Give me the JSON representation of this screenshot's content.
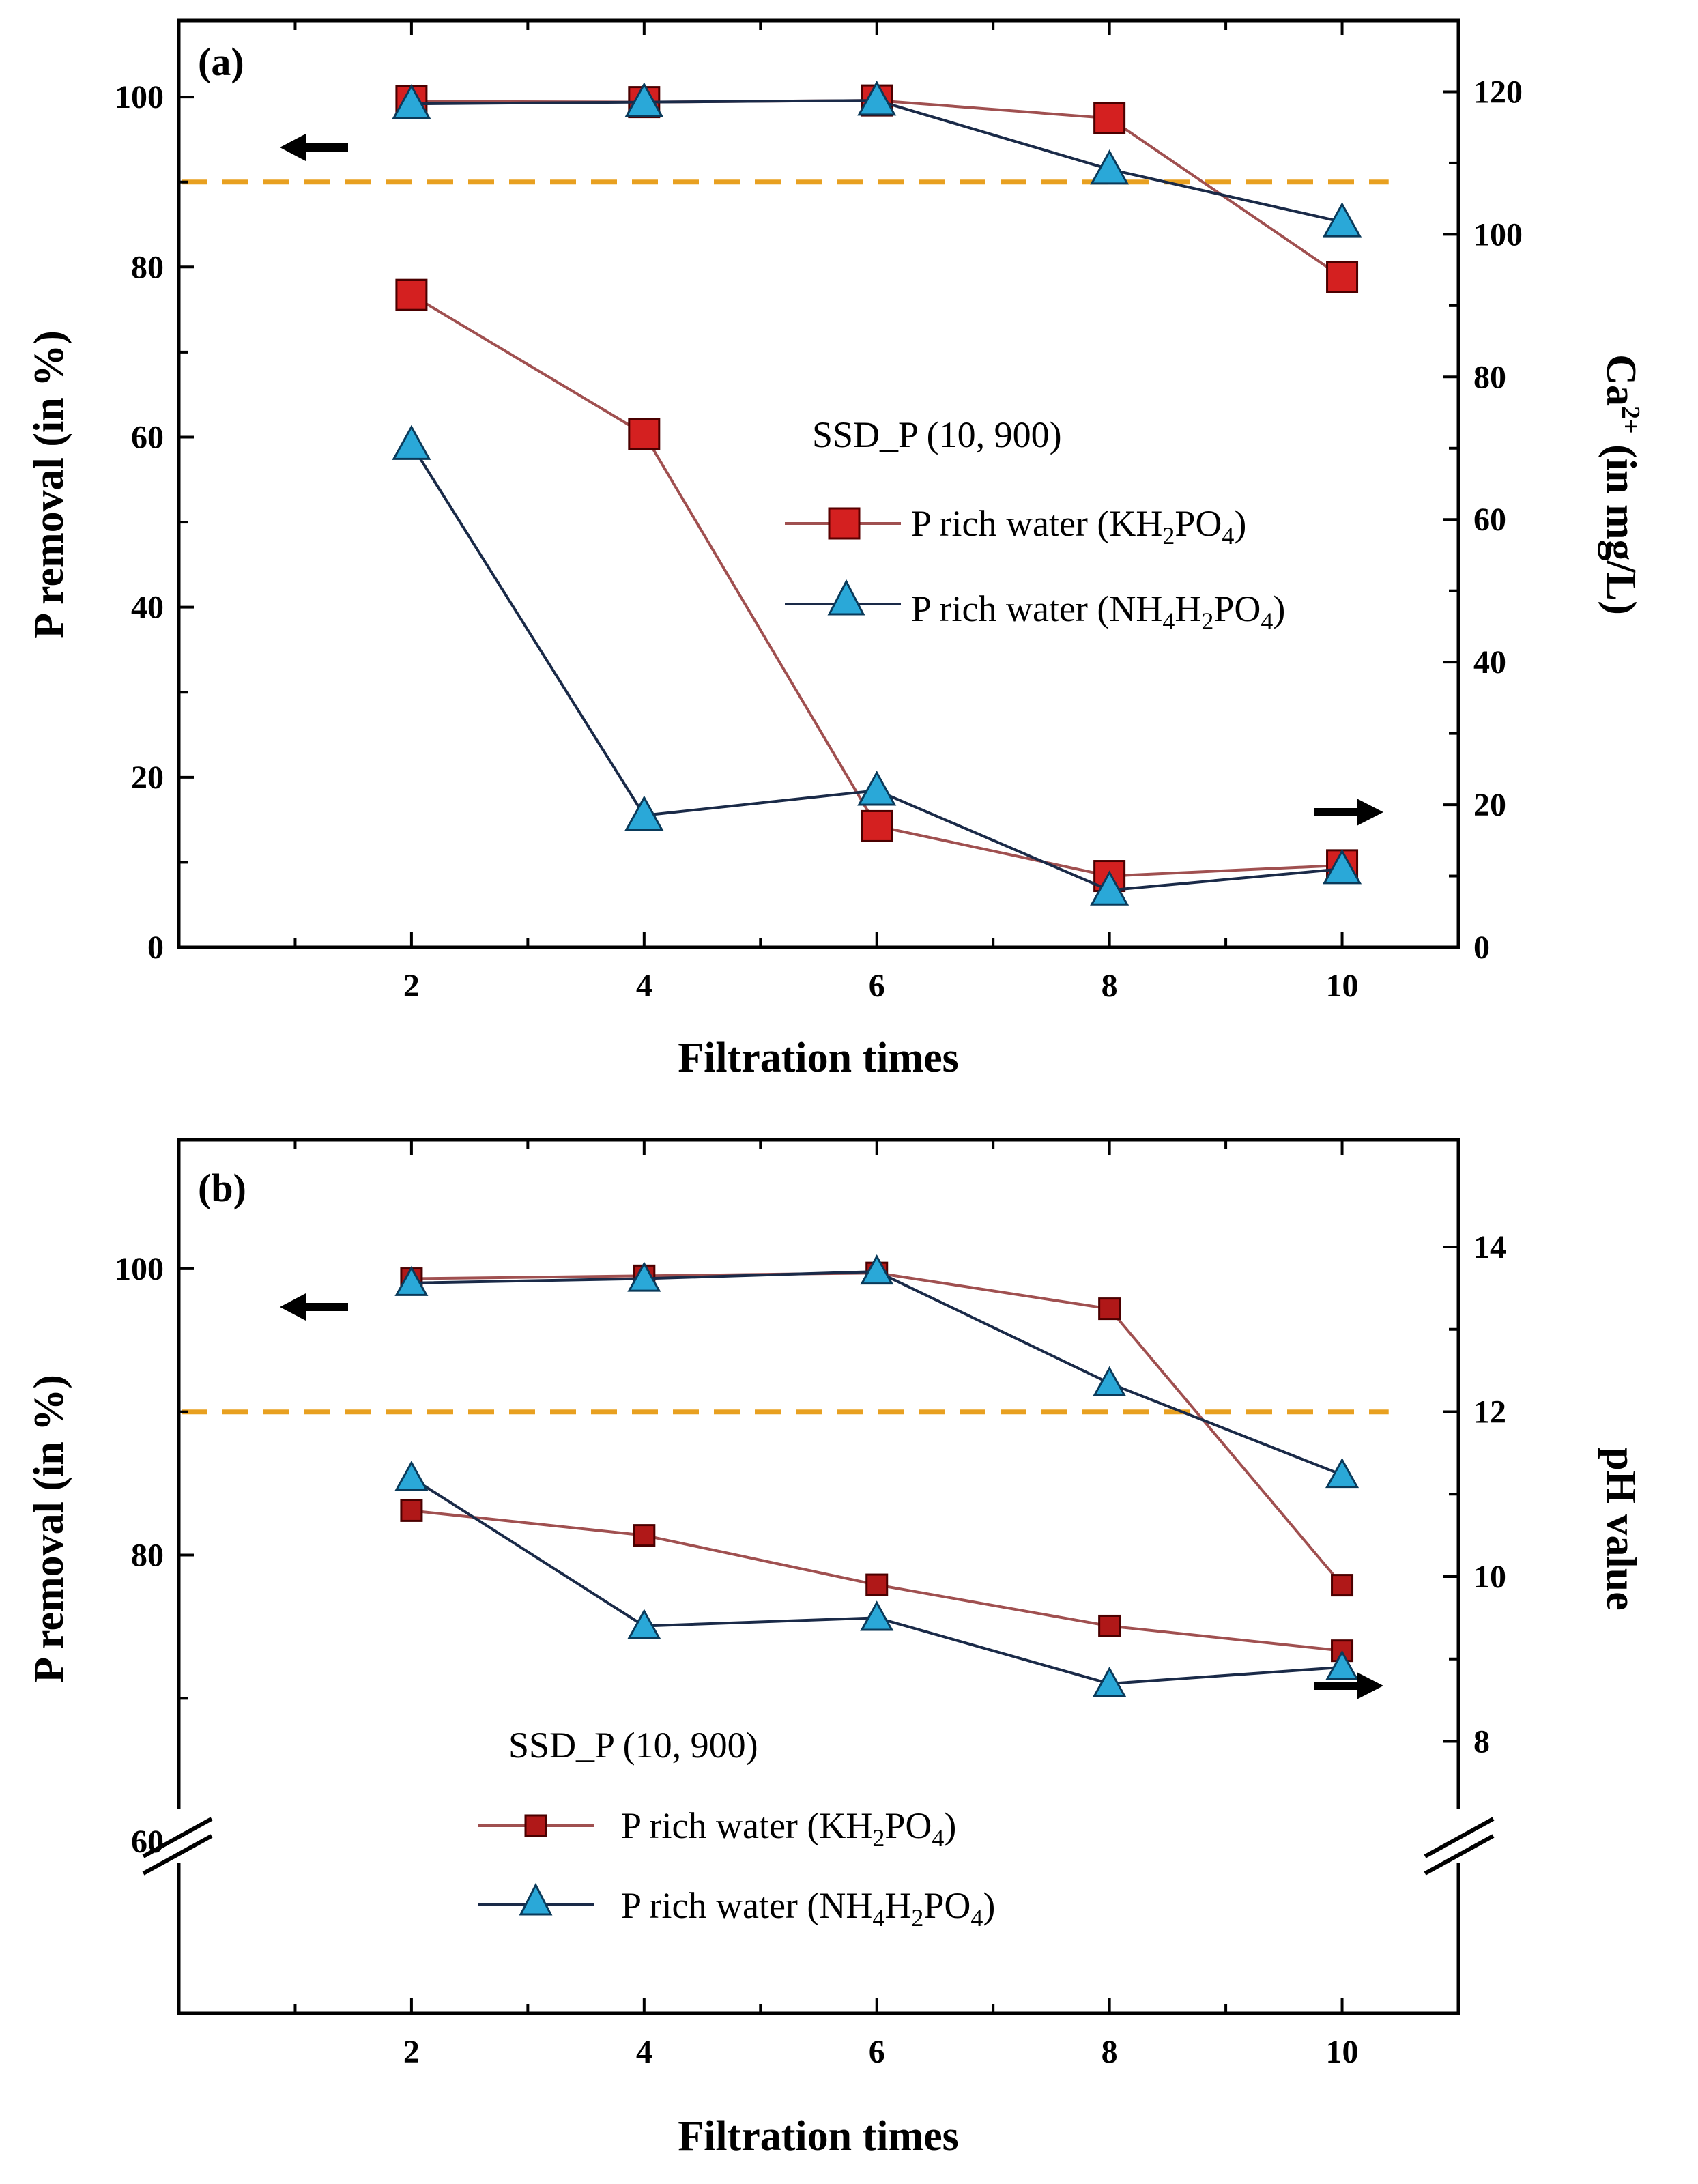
{
  "chart_data": [
    {
      "type": "line",
      "panel_label": "(a)",
      "xlabel": "Filtration times",
      "ylabel_left": "P removal (in %)",
      "ylabel_right_main": "Ca",
      "ylabel_right_sup": "2+",
      "ylabel_right_tail": " (in mg/L)",
      "xlim": [
        0,
        11
      ],
      "ylim_left": [
        0,
        109
      ],
      "ylim_right": [
        0,
        130
      ],
      "x_ticks": [
        2,
        4,
        6,
        8,
        10
      ],
      "y_left_ticks": [
        0,
        20,
        40,
        60,
        80,
        100
      ],
      "y_right_ticks": [
        0,
        20,
        40,
        60,
        80,
        100,
        120
      ],
      "reference_line": 90,
      "reference_color": "#e8a020",
      "legend_title": "SSD_P (10, 900)",
      "series": [
        {
          "legend_parts": [
            "P rich water (KH",
            "2",
            "PO",
            "4",
            ")"
          ],
          "axis": "left",
          "marker": "square",
          "color": "#d42020",
          "line_color": "#a05050",
          "x": [
            2,
            4,
            6,
            8,
            10
          ],
          "y": [
            99.5,
            99.4,
            99.6,
            97.5,
            78.8
          ]
        },
        {
          "legend_parts": [
            "P rich water (NH",
            "4",
            "H",
            "2",
            "PO",
            "4",
            ")"
          ],
          "axis": "left",
          "marker": "triangle",
          "color": "#2aa8d8",
          "line_color": "#1a2a48",
          "x": [
            2,
            4,
            6,
            8,
            10
          ],
          "y": [
            99.2,
            99.4,
            99.6,
            91.5,
            85.3
          ]
        },
        {
          "legend_parts": [
            "P rich water (KH",
            "2",
            "PO",
            "4",
            ")"
          ],
          "axis": "right",
          "marker": "square",
          "color": "#d42020",
          "line_color": "#a05050",
          "x": [
            2,
            4,
            6,
            8,
            10
          ],
          "y": [
            91.5,
            72,
            17,
            10,
            11.5
          ]
        },
        {
          "legend_parts": [
            "P rich water (NH",
            "4",
            "H",
            "2",
            "PO",
            "4",
            ")"
          ],
          "axis": "right",
          "marker": "triangle",
          "color": "#2aa8d8",
          "line_color": "#1a2a48",
          "x": [
            2,
            4,
            6,
            8,
            10
          ],
          "y": [
            70.5,
            18.5,
            22,
            8,
            11
          ]
        }
      ]
    },
    {
      "type": "line",
      "panel_label": "(b)",
      "xlabel": "Filtration times",
      "ylabel_left": "P removal (in %)",
      "ylabel_right": "pH value",
      "xlim": [
        0,
        11
      ],
      "ylim_left": [
        48,
        109
      ],
      "ylim_right": [
        4.7,
        15.3
      ],
      "x_ticks": [
        2,
        4,
        6,
        8,
        10
      ],
      "y_left_ticks": [
        60,
        80,
        100
      ],
      "y_right_ticks": [
        8,
        10,
        12,
        14
      ],
      "axis_break": true,
      "reference_line": 90,
      "reference_color": "#e8a020",
      "legend_title": "SSD_P (10, 900)",
      "series": [
        {
          "legend_parts": [
            "P rich water (KH",
            "2",
            "PO",
            "4",
            ")"
          ],
          "axis": "left",
          "marker": "square",
          "color": "#b01818",
          "line_color": "#a05050",
          "x": [
            2,
            4,
            6,
            8,
            10
          ],
          "y": [
            99.3,
            99.5,
            99.7,
            97.2,
            77.9
          ]
        },
        {
          "legend_parts": [
            "P rich water (NH",
            "4",
            "H",
            "2",
            "PO",
            "4",
            ")"
          ],
          "axis": "left",
          "marker": "triangle",
          "color": "#2aa8d8",
          "line_color": "#1a2a48",
          "x": [
            2,
            4,
            6,
            8,
            10
          ],
          "y": [
            99.0,
            99.3,
            99.8,
            92.0,
            85.6
          ]
        },
        {
          "legend_parts": [
            "P rich water (KH",
            "2",
            "PO",
            "4",
            ")"
          ],
          "axis": "right",
          "marker": "square",
          "color": "#b01818",
          "line_color": "#a05050",
          "x": [
            2,
            4,
            6,
            8,
            10
          ],
          "y": [
            10.8,
            10.5,
            9.9,
            9.4,
            9.1
          ]
        },
        {
          "legend_parts": [
            "P rich water (NH",
            "4",
            "H",
            "2",
            "PO",
            "4",
            ")"
          ],
          "axis": "right",
          "marker": "triangle",
          "color": "#2aa8d8",
          "line_color": "#1a2a48",
          "x": [
            2,
            4,
            6,
            8,
            10
          ],
          "y": [
            11.2,
            9.4,
            9.5,
            8.7,
            8.9
          ]
        }
      ]
    }
  ]
}
